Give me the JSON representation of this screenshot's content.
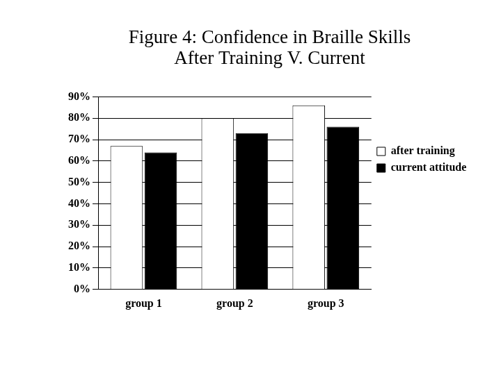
{
  "chart_data": {
    "type": "bar",
    "title": [
      "Figure 4: Confidence in Braille Skills",
      "After Training V. Current"
    ],
    "categories": [
      "group 1",
      "group 2",
      "group 3"
    ],
    "series": [
      {
        "name": "after training",
        "color": "#ffffff",
        "values": [
          67,
          80,
          86
        ]
      },
      {
        "name": "current attitude",
        "color": "#000000",
        "values": [
          64,
          73,
          76
        ]
      }
    ],
    "ylim": [
      0,
      90
    ],
    "yticks": [
      {
        "value": 0,
        "label": "0%"
      },
      {
        "value": 10,
        "label": "10%"
      },
      {
        "value": 20,
        "label": "20%"
      },
      {
        "value": 30,
        "label": "30%"
      },
      {
        "value": 40,
        "label": "40%"
      },
      {
        "value": 50,
        "label": "50%"
      },
      {
        "value": 60,
        "label": "60%"
      },
      {
        "value": 70,
        "label": "70%"
      },
      {
        "value": 80,
        "label": "80%"
      },
      {
        "value": 90,
        "label": "90%"
      }
    ],
    "grid": true,
    "legend": "right"
  }
}
